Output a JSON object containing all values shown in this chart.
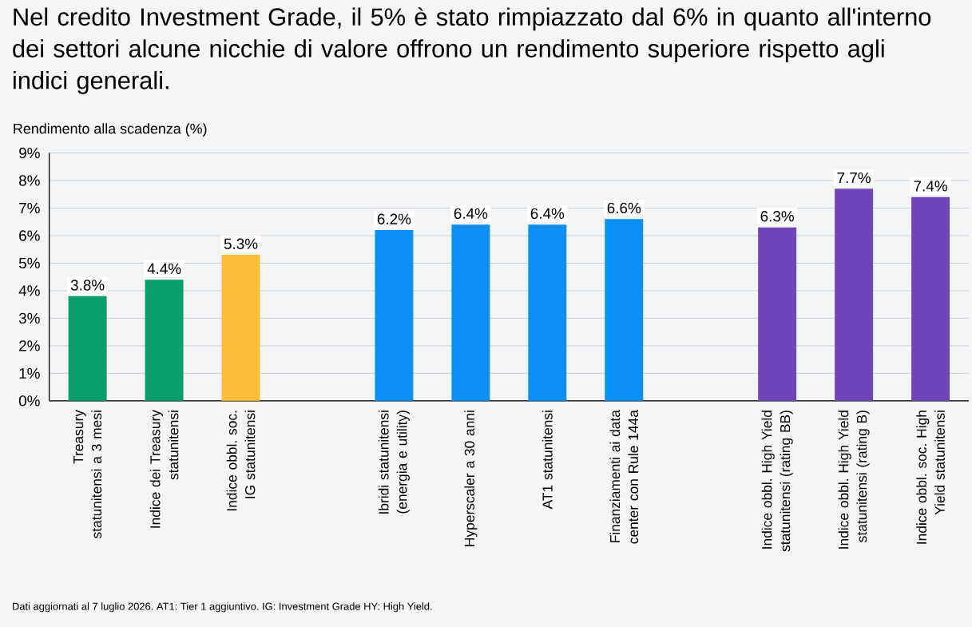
{
  "chart_data": {
    "type": "bar",
    "title": "Nel credito Investment Grade, il 5% è stato rimpiazzato dal 6% in quanto all'interno dei settori alcune nicchie di valore offrono un rendimento superiore rispetto agli indici generali.",
    "ylabel": "Rendimento alla scadenza (%)",
    "categories": [
      "Treasury statunitensi a 3 mesi",
      "Indice dei Treasury statunitensi",
      "Indice obbl. soc. IG statunitensi",
      null,
      "Ibridi statunitensi (energia e utility)",
      "Hyperscaler a 30 anni",
      "AT1 statunitensi",
      "Finanziamenti ai data center con Rule 144a",
      null,
      "Indice obbl. High Yield statunitensi (rating BB)",
      "Indice obbl. High Yield statunitensi (rating B)",
      "Indice obbl. soc. High Yield statunitensi"
    ],
    "values": [
      3.8,
      4.4,
      5.3,
      null,
      6.2,
      6.4,
      6.4,
      6.6,
      null,
      6.3,
      7.7,
      7.4
    ],
    "colors": [
      "#0a9e6c",
      "#0a9e6c",
      "#fdbd3a",
      null,
      "#0a90f5",
      "#0a90f5",
      "#0a90f5",
      "#0a90f5",
      null,
      "#6f45b9",
      "#6f45b9",
      "#6f45b9"
    ],
    "value_labels": [
      "3.8%",
      "4.4%",
      "5.3%",
      null,
      "6.2%",
      "6.4%",
      "6.4%",
      "6.6%",
      null,
      "6.3%",
      "7.7%",
      "7.4%"
    ],
    "ylim": [
      0,
      9
    ],
    "yticks": [
      {
        "value": 0,
        "label": "0%"
      },
      {
        "value": 1,
        "label": "1%"
      },
      {
        "value": 2,
        "label": "2%"
      },
      {
        "value": 3,
        "label": "3%"
      },
      {
        "value": 4,
        "label": "4%"
      },
      {
        "value": 5,
        "label": "5%"
      },
      {
        "value": 6,
        "label": "6%"
      },
      {
        "value": 7,
        "label": "7%"
      },
      {
        "value": 8,
        "label": "8%"
      },
      {
        "value": 9,
        "label": "9%"
      }
    ],
    "grid": "y",
    "annotations": [
      "Dati aggiornati al 7 luglio 2026. AT1: Tier 1 aggiuntivo. IG: Investment Grade HY: High Yield."
    ]
  }
}
